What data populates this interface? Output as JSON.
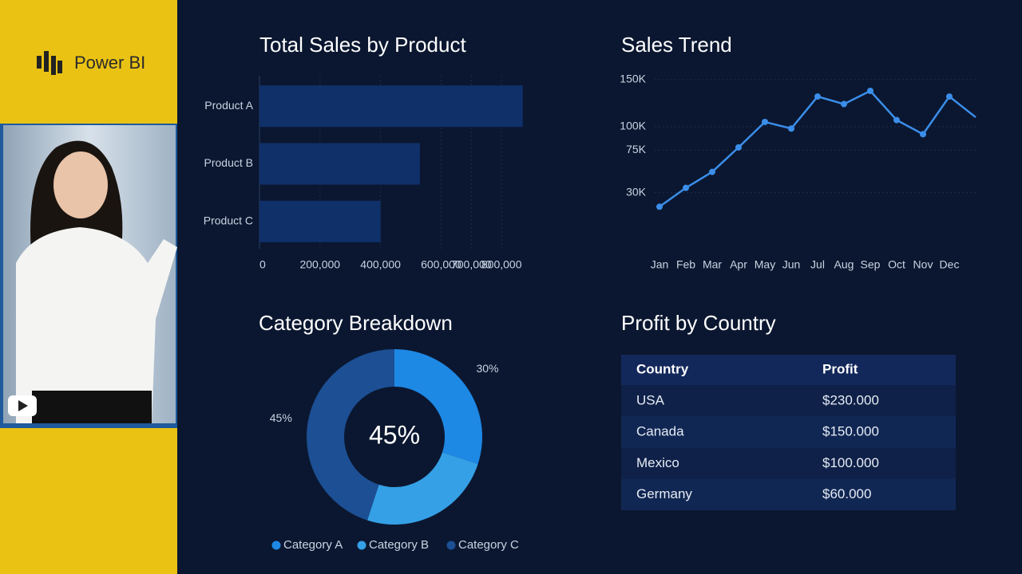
{
  "brand": "Power BI",
  "chart_data": [
    {
      "type": "bar",
      "orientation": "horizontal",
      "title": "Total Sales by Product",
      "categories": [
        "Product A",
        "Product B",
        "Product C"
      ],
      "values": [
        870000,
        530000,
        400000
      ],
      "color": "#10306a",
      "xlim": [
        0,
        1000000
      ],
      "xticks": [
        0,
        {
          "value": 200000,
          "label": "200,000"
        },
        {
          "value": 400000,
          "label": "400,000"
        },
        {
          "value": 600000,
          "label": "600,000"
        },
        {
          "value": 800000,
          "label": "800,000"
        },
        {
          "value": 700000,
          "label": "700,000"
        }
      ],
      "grid": true
    },
    {
      "type": "line",
      "title": "Sales Trend",
      "categories": [
        "Jan",
        "Feb",
        "Mar",
        "Apr",
        "May",
        "Jun",
        "Jul",
        "Aug",
        "Sep",
        "Oct",
        "Nov",
        "Dec",
        null
      ],
      "values": [
        15000,
        35000,
        52000,
        78000,
        105000,
        98000,
        132000,
        124000,
        138000,
        107000,
        92000,
        132000,
        110000
      ],
      "color": "#3b8eea",
      "ylim": [
        0,
        160000
      ],
      "yticks": [
        {
          "value": 150000,
          "label": "150K"
        },
        {
          "value": 100000,
          "label": "100K"
        },
        {
          "value": 75000,
          "label": "75K"
        },
        {
          "value": 30000,
          "label": "30K"
        }
      ],
      "grid": true
    },
    {
      "type": "pie",
      "donut": true,
      "title": "Category Breakdown",
      "center_label": "45%",
      "categories": [
        "Category A",
        "Category B",
        "Category C"
      ],
      "values": [
        30,
        25,
        45
      ],
      "value_labels": [
        "30%",
        null,
        "45%"
      ],
      "colors": [
        "#1e88e5",
        "#35a0e6",
        "#1c4f94"
      ]
    }
  ],
  "table": {
    "title": "Profit by Country",
    "columns": [
      "Country",
      "Profit"
    ],
    "rows": [
      [
        "USA",
        "$230.000"
      ],
      [
        "Canada",
        "$150.000"
      ],
      [
        "Mexico",
        "$100.000"
      ],
      [
        "Germany",
        "$60.000"
      ]
    ]
  }
}
